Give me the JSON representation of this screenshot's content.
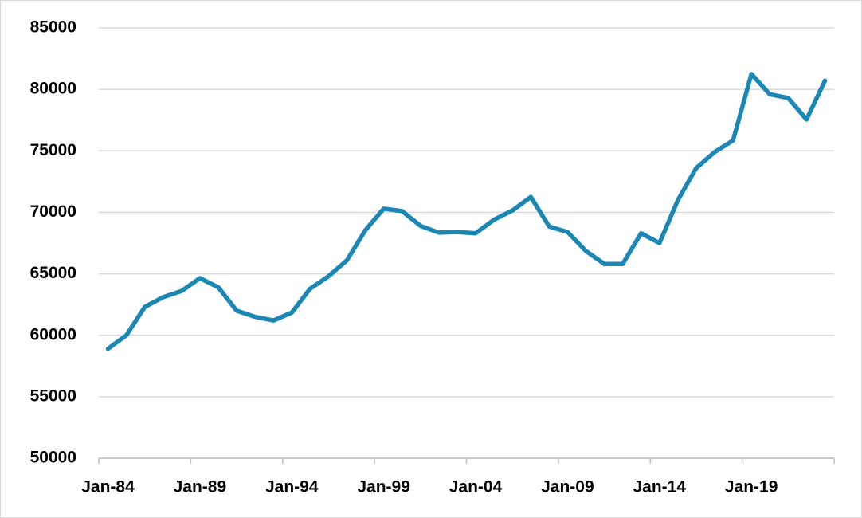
{
  "chart_data": {
    "type": "line",
    "categories": [
      "Jan-84",
      null,
      null,
      null,
      null,
      "Jan-89",
      null,
      null,
      null,
      null,
      "Jan-94",
      null,
      null,
      null,
      null,
      "Jan-99",
      null,
      null,
      null,
      null,
      "Jan-04",
      null,
      null,
      null,
      null,
      "Jan-09",
      null,
      null,
      null,
      null,
      "Jan-14",
      null,
      null,
      null,
      null,
      "Jan-19",
      null,
      null,
      null,
      null
    ],
    "series": [
      {
        "color": "#1a87b5",
        "values": [
          58900,
          60000,
          62300,
          63100,
          63600,
          64650,
          63900,
          62000,
          61500,
          61200,
          61850,
          63800,
          64800,
          66100,
          68550,
          70300,
          70100,
          68900,
          68350,
          68400,
          68300,
          69400,
          70150,
          71250,
          68850,
          68400,
          66850,
          65800,
          65800,
          68300,
          67500,
          71000,
          73600,
          74900,
          75850,
          81250,
          79600,
          79300,
          77550,
          80700
        ]
      }
    ],
    "ylim": [
      50000,
      85000
    ],
    "yticks": [
      50000,
      55000,
      60000,
      65000,
      70000,
      75000,
      80000,
      85000
    ],
    "grid": true
  }
}
